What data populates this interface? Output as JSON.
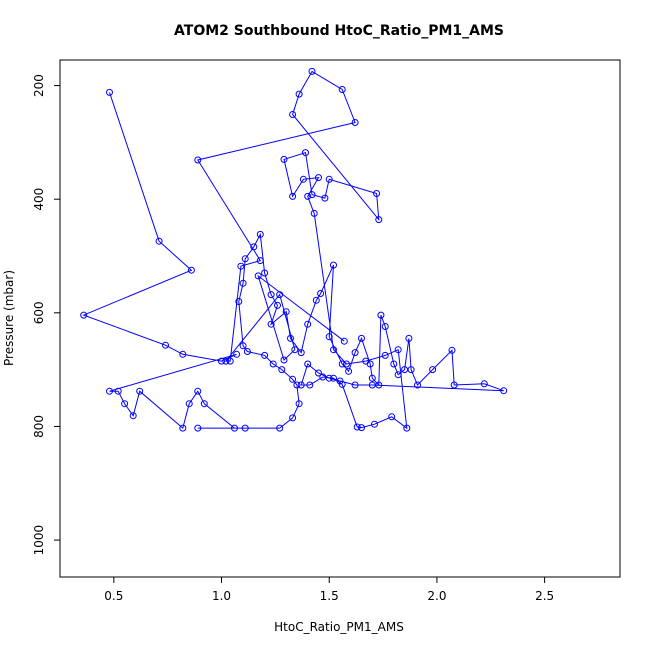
{
  "chart_data": {
    "type": "line",
    "title": "ATOM2 Southbound HtoC_Ratio_PM1_AMS",
    "xlabel": "HtoC_Ratio_PM1_AMS",
    "ylabel": "Pressure (mbar)",
    "xlim": [
      0.25,
      2.85
    ],
    "ylim": [
      1065,
      155
    ],
    "y_reversed": true,
    "x_ticks": [
      0.5,
      1.0,
      1.5,
      2.0,
      2.5
    ],
    "x_tick_labels": [
      "0.5",
      "1.0",
      "1.5",
      "2.0",
      "2.5"
    ],
    "y_ticks": [
      200,
      400,
      600,
      800,
      1000
    ],
    "y_tick_labels": [
      "200",
      "400",
      "600",
      "800",
      "1000"
    ],
    "grid": false,
    "series": [
      {
        "color": "#0000ff",
        "markers": "open-circle",
        "points": [
          [
            0.48,
            212
          ],
          [
            0.71,
            474
          ],
          [
            0.86,
            525
          ],
          [
            0.36,
            604
          ],
          [
            0.74,
            657
          ],
          [
            0.82,
            673
          ],
          [
            1.0,
            685
          ],
          [
            1.07,
            673
          ],
          [
            0.48,
            738
          ],
          [
            0.52,
            738
          ],
          [
            0.55,
            760
          ],
          [
            0.59,
            781
          ],
          [
            0.62,
            738
          ],
          [
            0.82,
            803
          ],
          [
            0.85,
            760
          ],
          [
            0.89,
            738
          ],
          [
            0.92,
            760
          ],
          [
            1.06,
            803
          ],
          [
            1.11,
            803
          ],
          [
            0.89,
            803
          ],
          [
            1.27,
            803
          ],
          [
            1.33,
            785
          ],
          [
            1.36,
            760
          ],
          [
            1.35,
            727
          ],
          [
            1.33,
            717
          ],
          [
            1.28,
            700
          ],
          [
            1.24,
            690
          ],
          [
            1.2,
            675
          ],
          [
            1.12,
            668
          ],
          [
            1.1,
            658
          ],
          [
            1.08,
            580
          ],
          [
            1.1,
            548
          ],
          [
            1.11,
            505
          ],
          [
            1.15,
            484
          ],
          [
            1.18,
            462
          ],
          [
            1.2,
            530
          ],
          [
            1.23,
            568
          ],
          [
            1.26,
            587
          ],
          [
            1.23,
            620
          ],
          [
            1.3,
            598
          ],
          [
            1.32,
            645
          ],
          [
            1.37,
            670
          ],
          [
            1.4,
            620
          ],
          [
            1.44,
            578
          ],
          [
            1.46,
            566
          ],
          [
            1.52,
            516
          ],
          [
            1.5,
            642
          ],
          [
            1.56,
            690
          ],
          [
            1.59,
            703
          ],
          [
            1.62,
            670
          ],
          [
            1.65,
            645
          ],
          [
            1.69,
            690
          ],
          [
            1.7,
            715
          ],
          [
            1.73,
            727
          ],
          [
            1.74,
            604
          ],
          [
            1.76,
            624
          ],
          [
            1.8,
            690
          ],
          [
            1.82,
            709
          ],
          [
            1.85,
            700
          ],
          [
            1.87,
            645
          ],
          [
            1.88,
            700
          ],
          [
            1.91,
            727
          ],
          [
            1.98,
            700
          ],
          [
            2.07,
            666
          ],
          [
            2.08,
            727
          ],
          [
            2.22,
            725
          ],
          [
            2.31,
            737
          ],
          [
            1.7,
            727
          ],
          [
            1.62,
            727
          ],
          [
            1.55,
            720
          ],
          [
            1.5,
            715
          ],
          [
            1.45,
            706
          ],
          [
            1.4,
            690
          ],
          [
            1.37,
            727
          ],
          [
            1.41,
            727
          ],
          [
            1.47,
            713
          ],
          [
            1.52,
            715
          ],
          [
            1.56,
            726
          ],
          [
            1.63,
            801
          ],
          [
            1.65,
            802
          ],
          [
            1.71,
            796
          ],
          [
            1.79,
            783
          ],
          [
            1.86,
            803
          ],
          [
            1.82,
            665
          ],
          [
            1.76,
            675
          ],
          [
            1.67,
            685
          ],
          [
            1.58,
            690
          ],
          [
            1.52,
            665
          ],
          [
            1.43,
            425
          ],
          [
            1.4,
            395
          ],
          [
            1.45,
            362
          ],
          [
            1.38,
            365
          ],
          [
            1.33,
            395
          ],
          [
            1.29,
            330
          ],
          [
            1.39,
            318
          ],
          [
            1.42,
            392
          ],
          [
            1.48,
            398
          ],
          [
            1.5,
            365
          ],
          [
            1.72,
            390
          ],
          [
            1.73,
            436
          ],
          [
            1.33,
            251
          ],
          [
            1.36,
            215
          ],
          [
            1.42,
            175
          ],
          [
            1.56,
            207
          ],
          [
            1.62,
            265
          ],
          [
            0.89,
            331
          ],
          [
            1.18,
            508
          ],
          [
            1.09,
            518
          ],
          [
            1.04,
            685
          ],
          [
            1.02,
            685
          ],
          [
            1.27,
            568
          ],
          [
            1.34,
            665
          ],
          [
            1.29,
            683
          ],
          [
            1.17,
            535
          ],
          [
            1.57,
            650
          ]
        ]
      }
    ]
  }
}
